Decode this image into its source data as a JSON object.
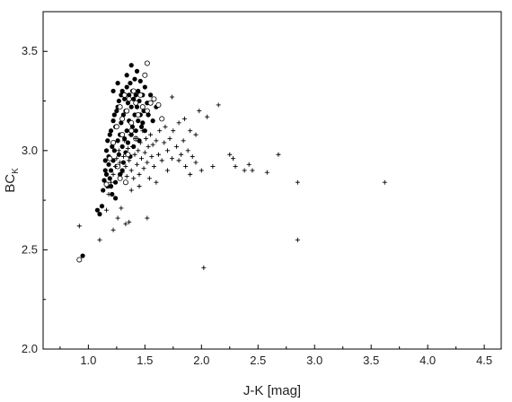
{
  "chart_data": {
    "type": "scatter",
    "title": "",
    "xlabel": "J-K [mag]",
    "ylabel_main": "BC",
    "ylabel_sub": "K",
    "xlim": [
      0.6,
      4.65
    ],
    "ylim": [
      2.0,
      3.7
    ],
    "xticks": [
      1.0,
      1.5,
      2.0,
      2.5,
      3.0,
      3.5,
      4.0,
      4.5
    ],
    "xtick_labels": [
      "1.0",
      "1.5",
      "2.0",
      "2.5",
      "3.0",
      "3.5",
      "4.0",
      "4.5"
    ],
    "yticks": [
      2.0,
      2.5,
      3.0,
      3.5
    ],
    "ytick_labels": [
      "2.0",
      "2.5",
      "3.0",
      "3.5"
    ],
    "grid": false,
    "series": [
      {
        "marker": "filled-circle",
        "points": [
          [
            0.95,
            2.47
          ],
          [
            1.08,
            2.7
          ],
          [
            1.1,
            2.68
          ],
          [
            1.12,
            2.72
          ],
          [
            1.13,
            2.8
          ],
          [
            1.14,
            2.85
          ],
          [
            1.15,
            2.9
          ],
          [
            1.15,
            2.95
          ],
          [
            1.16,
            2.88
          ],
          [
            1.16,
            3.0
          ],
          [
            1.17,
            2.82
          ],
          [
            1.17,
            3.05
          ],
          [
            1.18,
            2.93
          ],
          [
            1.18,
            2.97
          ],
          [
            1.19,
            3.08
          ],
          [
            1.19,
            2.86
          ],
          [
            1.2,
            3.1
          ],
          [
            1.2,
            2.9
          ],
          [
            1.21,
            3.02
          ],
          [
            1.21,
            2.78
          ],
          [
            1.22,
            3.15
          ],
          [
            1.22,
            2.95
          ],
          [
            1.23,
            3.18
          ],
          [
            1.23,
            3.0
          ],
          [
            1.24,
            2.84
          ],
          [
            1.24,
            3.12
          ],
          [
            1.25,
            3.2
          ],
          [
            1.25,
            2.92
          ],
          [
            1.26,
            3.05
          ],
          [
            1.26,
            3.22
          ],
          [
            1.27,
            2.98
          ],
          [
            1.27,
            3.25
          ],
          [
            1.28,
            3.08
          ],
          [
            1.28,
            2.88
          ],
          [
            1.29,
            3.28
          ],
          [
            1.29,
            3.14
          ],
          [
            1.3,
            3.02
          ],
          [
            1.3,
            3.3
          ],
          [
            1.31,
            3.18
          ],
          [
            1.31,
            2.94
          ],
          [
            1.32,
            3.26
          ],
          [
            1.32,
            3.06
          ],
          [
            1.33,
            3.2
          ],
          [
            1.33,
            2.99
          ],
          [
            1.34,
            3.32
          ],
          [
            1.34,
            3.1
          ],
          [
            1.35,
            3.24
          ],
          [
            1.35,
            3.04
          ],
          [
            1.36,
            3.28
          ],
          [
            1.36,
            3.15
          ],
          [
            1.37,
            2.97
          ],
          [
            1.37,
            3.34
          ],
          [
            1.38,
            3.22
          ],
          [
            1.38,
            3.08
          ],
          [
            1.39,
            3.3
          ],
          [
            1.39,
            3.12
          ],
          [
            1.4,
            3.26
          ],
          [
            1.4,
            3.02
          ],
          [
            1.41,
            3.36
          ],
          [
            1.41,
            3.18
          ],
          [
            1.42,
            3.28
          ],
          [
            1.42,
            3.1
          ],
          [
            1.43,
            3.22
          ],
          [
            1.43,
            3.4
          ],
          [
            1.44,
            3.15
          ],
          [
            1.44,
            3.3
          ],
          [
            1.45,
            3.05
          ],
          [
            1.45,
            3.25
          ],
          [
            1.46,
            3.18
          ],
          [
            1.46,
            3.35
          ],
          [
            1.47,
            3.12
          ],
          [
            1.48,
            3.28
          ],
          [
            1.49,
            3.2
          ],
          [
            1.5,
            3.32
          ],
          [
            1.5,
            3.1
          ],
          [
            1.52,
            3.24
          ],
          [
            1.53,
            3.18
          ],
          [
            1.55,
            3.28
          ],
          [
            1.57,
            3.15
          ],
          [
            1.6,
            3.22
          ],
          [
            1.38,
            3.43
          ],
          [
            1.34,
            3.38
          ],
          [
            1.26,
            3.34
          ],
          [
            1.22,
            3.3
          ],
          [
            1.48,
            3.14
          ],
          [
            1.3,
            2.9
          ],
          [
            1.24,
            2.76
          ],
          [
            1.2,
            2.82
          ]
        ]
      },
      {
        "marker": "open-circle",
        "points": [
          [
            0.92,
            2.45
          ],
          [
            1.16,
            2.83
          ],
          [
            1.19,
            2.96
          ],
          [
            1.22,
            3.04
          ],
          [
            1.25,
            3.12
          ],
          [
            1.28,
            3.22
          ],
          [
            1.3,
            3.16
          ],
          [
            1.32,
            3.28
          ],
          [
            1.34,
            3.2
          ],
          [
            1.36,
            3.26
          ],
          [
            1.38,
            3.14
          ],
          [
            1.4,
            3.3
          ],
          [
            1.42,
            3.24
          ],
          [
            1.44,
            3.18
          ],
          [
            1.46,
            3.28
          ],
          [
            1.48,
            3.22
          ],
          [
            1.5,
            3.38
          ],
          [
            1.52,
            3.2
          ],
          [
            1.55,
            3.24
          ],
          [
            1.58,
            3.26
          ],
          [
            1.62,
            3.23
          ],
          [
            1.65,
            3.16
          ],
          [
            1.52,
            3.44
          ],
          [
            1.38,
            3.1
          ],
          [
            1.42,
            3.06
          ],
          [
            1.3,
            3.08
          ],
          [
            1.26,
            2.92
          ],
          [
            1.35,
            2.98
          ],
          [
            1.28,
            2.86
          ],
          [
            1.33,
            2.84
          ]
        ]
      },
      {
        "marker": "plus",
        "points": [
          [
            0.92,
            2.62
          ],
          [
            1.1,
            2.55
          ],
          [
            1.16,
            2.7
          ],
          [
            1.18,
            2.78
          ],
          [
            1.2,
            2.84
          ],
          [
            1.22,
            2.88
          ],
          [
            1.24,
            2.92
          ],
          [
            1.25,
            2.96
          ],
          [
            1.27,
            3.0
          ],
          [
            1.28,
            2.94
          ],
          [
            1.29,
            2.71
          ],
          [
            1.3,
            2.89
          ],
          [
            1.31,
            2.97
          ],
          [
            1.32,
            3.05
          ],
          [
            1.33,
            2.63
          ],
          [
            1.33,
            2.92
          ],
          [
            1.34,
            2.87
          ],
          [
            1.35,
            3.01
          ],
          [
            1.36,
            2.95
          ],
          [
            1.37,
            3.08
          ],
          [
            1.38,
            2.9
          ],
          [
            1.39,
            3.02
          ],
          [
            1.4,
            2.86
          ],
          [
            1.41,
            2.98
          ],
          [
            1.42,
            3.06
          ],
          [
            1.43,
            2.93
          ],
          [
            1.44,
            3.0
          ],
          [
            1.45,
            2.88
          ],
          [
            1.46,
            3.04
          ],
          [
            1.47,
            2.96
          ],
          [
            1.48,
            3.1
          ],
          [
            1.49,
            2.91
          ],
          [
            1.5,
            2.99
          ],
          [
            1.51,
            3.06
          ],
          [
            1.52,
            2.94
          ],
          [
            1.53,
            3.02
          ],
          [
            1.54,
            2.86
          ],
          [
            1.55,
            3.08
          ],
          [
            1.56,
            2.97
          ],
          [
            1.57,
            3.03
          ],
          [
            1.58,
            2.92
          ],
          [
            1.6,
            3.05
          ],
          [
            1.62,
            2.98
          ],
          [
            1.63,
            3.1
          ],
          [
            1.65,
            2.95
          ],
          [
            1.67,
            3.04
          ],
          [
            1.68,
            3.12
          ],
          [
            1.7,
            3.0
          ],
          [
            1.72,
            3.06
          ],
          [
            1.74,
            2.96
          ],
          [
            1.75,
            3.1
          ],
          [
            1.78,
            3.02
          ],
          [
            1.8,
            3.14
          ],
          [
            1.82,
            2.98
          ],
          [
            1.84,
            3.05
          ],
          [
            1.86,
            2.92
          ],
          [
            1.88,
            3.0
          ],
          [
            1.9,
            2.88
          ],
          [
            1.92,
            2.97
          ],
          [
            1.95,
            2.94
          ],
          [
            1.98,
            3.2
          ],
          [
            2.0,
            2.9
          ],
          [
            2.02,
            2.41
          ],
          [
            2.05,
            3.17
          ],
          [
            2.1,
            2.92
          ],
          [
            2.15,
            3.23
          ],
          [
            2.25,
            2.98
          ],
          [
            2.28,
            2.96
          ],
          [
            2.3,
            2.92
          ],
          [
            2.38,
            2.9
          ],
          [
            2.42,
            2.93
          ],
          [
            2.45,
            2.9
          ],
          [
            2.58,
            2.89
          ],
          [
            2.68,
            2.98
          ],
          [
            2.85,
            2.84
          ],
          [
            2.85,
            2.55
          ],
          [
            3.62,
            2.84
          ],
          [
            1.36,
            2.64
          ],
          [
            1.52,
            2.66
          ],
          [
            1.22,
            2.6
          ],
          [
            1.74,
            3.27
          ],
          [
            1.85,
            3.16
          ],
          [
            1.9,
            3.1
          ],
          [
            1.6,
            2.84
          ],
          [
            1.45,
            2.82
          ],
          [
            1.38,
            2.8
          ],
          [
            1.7,
            2.9
          ],
          [
            1.95,
            3.08
          ],
          [
            1.8,
            2.95
          ],
          [
            1.26,
            2.66
          ]
        ]
      }
    ]
  }
}
